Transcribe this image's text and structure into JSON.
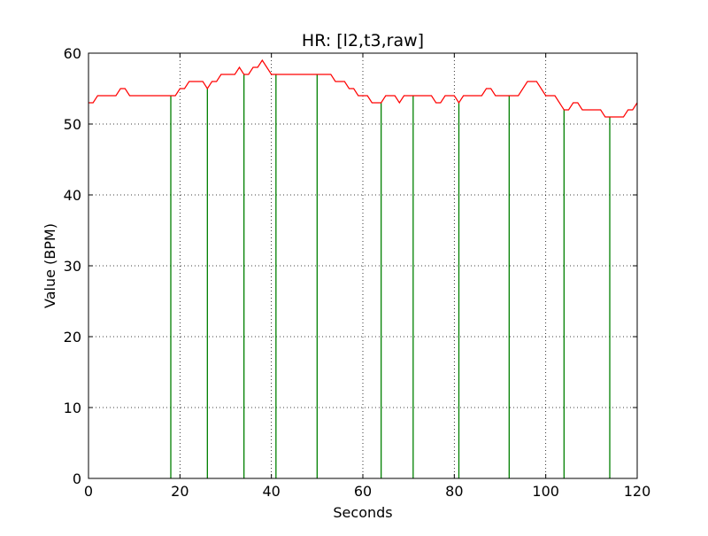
{
  "chart_data": {
    "type": "line",
    "title": "HR: [l2,t3,raw]",
    "xlabel": "Seconds",
    "ylabel": "Value (BPM)",
    "xlim": [
      0,
      120
    ],
    "ylim": [
      0,
      60
    ],
    "xticks": [
      0,
      20,
      40,
      60,
      80,
      100,
      120
    ],
    "yticks": [
      0,
      10,
      20,
      30,
      40,
      50,
      60
    ],
    "xtick_labels": [
      "0",
      "20",
      "40",
      "60",
      "80",
      "100",
      "120"
    ],
    "ytick_labels": [
      "0",
      "10",
      "20",
      "30",
      "40",
      "50",
      "60"
    ],
    "grid": true,
    "grid_style": "dotted",
    "series": [
      {
        "kind": "line",
        "color": "#ff0000",
        "x": [
          0,
          1,
          2,
          3,
          4,
          5,
          6,
          7,
          8,
          9,
          10,
          11,
          12,
          13,
          14,
          15,
          16,
          17,
          18,
          19,
          20,
          21,
          22,
          23,
          24,
          25,
          26,
          27,
          28,
          29,
          30,
          31,
          32,
          33,
          34,
          35,
          36,
          37,
          38,
          39,
          40,
          41,
          42,
          43,
          44,
          45,
          46,
          47,
          48,
          49,
          50,
          51,
          52,
          53,
          54,
          55,
          56,
          57,
          58,
          59,
          60,
          61,
          62,
          63,
          64,
          65,
          66,
          67,
          68,
          69,
          70,
          71,
          72,
          73,
          74,
          75,
          76,
          77,
          78,
          79,
          80,
          81,
          82,
          83,
          84,
          85,
          86,
          87,
          88,
          89,
          90,
          91,
          92,
          93,
          94,
          95,
          96,
          97,
          98,
          99,
          100,
          101,
          102,
          103,
          104,
          105,
          106,
          107,
          108,
          109,
          110,
          111,
          112,
          113,
          114,
          115,
          116,
          117,
          118,
          119,
          120
        ],
        "y": [
          53,
          53,
          54,
          54,
          54,
          54,
          54,
          55,
          55,
          54,
          54,
          54,
          54,
          54,
          54,
          54,
          54,
          54,
          54,
          54,
          55,
          55,
          56,
          56,
          56,
          56,
          55,
          56,
          56,
          57,
          57,
          57,
          57,
          58,
          57,
          57,
          58,
          58,
          59,
          58,
          57,
          57,
          57,
          57,
          57,
          57,
          57,
          57,
          57,
          57,
          57,
          57,
          57,
          57,
          56,
          56,
          56,
          55,
          55,
          54,
          54,
          54,
          53,
          53,
          53,
          54,
          54,
          54,
          53,
          54,
          54,
          54,
          54,
          54,
          54,
          54,
          53,
          53,
          54,
          54,
          54,
          53,
          54,
          54,
          54,
          54,
          54,
          55,
          55,
          54,
          54,
          54,
          54,
          54,
          54,
          55,
          56,
          56,
          56,
          55,
          54,
          54,
          54,
          53,
          52,
          52,
          53,
          53,
          52,
          52,
          52,
          52,
          52,
          51,
          51,
          51,
          51,
          51,
          52,
          52,
          53
        ]
      },
      {
        "kind": "stems",
        "color": "#008000",
        "x": [
          18,
          26,
          34,
          41,
          50,
          64,
          71,
          81,
          92,
          104,
          114
        ],
        "y": [
          54,
          55,
          57,
          57,
          57,
          53,
          54,
          53,
          54,
          52,
          51
        ]
      }
    ]
  }
}
